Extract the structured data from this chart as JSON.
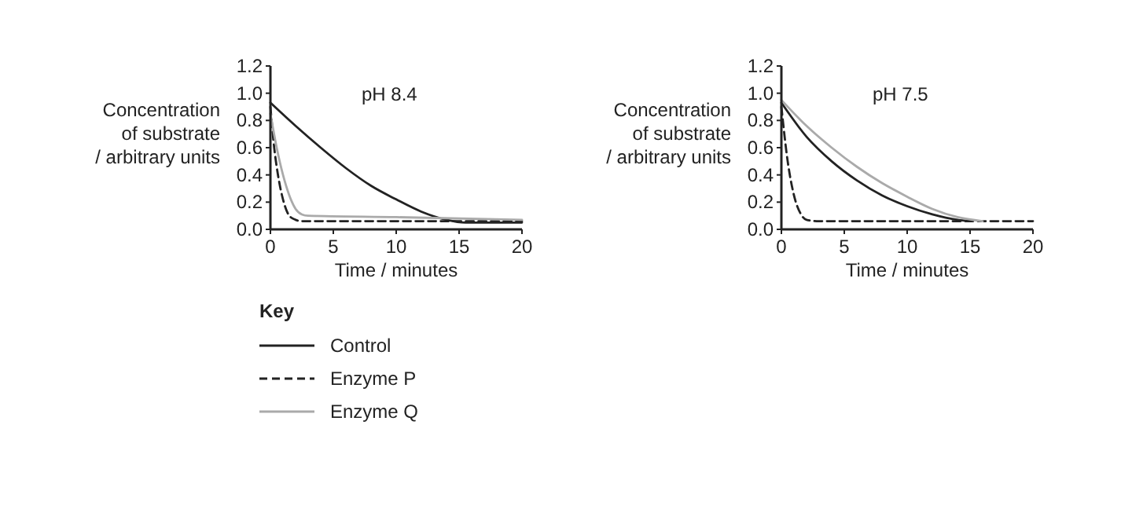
{
  "chart_data": [
    {
      "type": "line",
      "title": "pH 8.4",
      "xlabel": "Time / minutes",
      "ylabel": "Concentration\nof substrate\n/ arbitrary units",
      "legend_title": "Key",
      "legend": "bottom",
      "grid": false,
      "marker": "none",
      "xlim": [
        0,
        20
      ],
      "ylim": [
        0,
        1.2
      ],
      "xticks": [
        0,
        5,
        10,
        15,
        20
      ],
      "yticks": [
        {
          "value": 0,
          "label": "0.0"
        },
        {
          "value": 0.2,
          "label": "0.2"
        },
        {
          "value": 0.4,
          "label": "0.4"
        },
        {
          "value": 0.6,
          "label": "0.6"
        },
        {
          "value": 0.8,
          "label": "0.8"
        },
        {
          "value": 1,
          "label": "1.0"
        },
        {
          "value": 1.2,
          "label": "1.2"
        }
      ],
      "series": [
        {
          "name": "Control",
          "color": "#222222",
          "line_style": "solid",
          "x": [
            0,
            2,
            4,
            6,
            8,
            10,
            12,
            14,
            15.5,
            20
          ],
          "values": [
            0.93,
            0.76,
            0.6,
            0.45,
            0.32,
            0.22,
            0.13,
            0.07,
            0.05,
            0.05
          ]
        },
        {
          "name": "Enzyme P",
          "color": "#222222",
          "line_style": "dashed",
          "x": [
            0,
            0.3,
            0.6,
            1,
            1.5,
            2,
            2.5,
            20
          ],
          "values": [
            0.9,
            0.6,
            0.4,
            0.22,
            0.1,
            0.07,
            0.06,
            0.06
          ]
        },
        {
          "name": "Enzyme Q",
          "color": "#aaaaaa",
          "line_style": "solid",
          "x": [
            0,
            0.5,
            1,
            1.5,
            2,
            2.5,
            3,
            10,
            20
          ],
          "values": [
            0.85,
            0.6,
            0.4,
            0.25,
            0.15,
            0.11,
            0.1,
            0.09,
            0.07
          ]
        }
      ]
    },
    {
      "type": "line",
      "title": "pH 7.5",
      "xlabel": "Time / minutes",
      "ylabel": "Concentration\nof substrate\n/ arbitrary units",
      "legend": false,
      "grid": false,
      "marker": "none",
      "xlim": [
        0,
        20
      ],
      "ylim": [
        0,
        1.2
      ],
      "xticks": [
        0,
        5,
        10,
        15,
        20
      ],
      "yticks": [
        {
          "value": 0,
          "label": "0.0"
        },
        {
          "value": 0.2,
          "label": "0.2"
        },
        {
          "value": 0.4,
          "label": "0.4"
        },
        {
          "value": 0.6,
          "label": "0.6"
        },
        {
          "value": 0.8,
          "label": "0.8"
        },
        {
          "value": 1,
          "label": "1.0"
        },
        {
          "value": 1.2,
          "label": "1.2"
        }
      ],
      "series": [
        {
          "color": "#222222",
          "line_style": "solid",
          "x": [
            0,
            2,
            4,
            6,
            8,
            10,
            12,
            14,
            15
          ],
          "values": [
            0.93,
            0.68,
            0.5,
            0.36,
            0.25,
            0.17,
            0.11,
            0.07,
            0.06
          ]
        },
        {
          "color": "#222222",
          "line_style": "dashed",
          "x": [
            0,
            0.5,
            1,
            1.5,
            2,
            3,
            20
          ],
          "values": [
            0.9,
            0.5,
            0.25,
            0.12,
            0.07,
            0.06,
            0.06
          ]
        },
        {
          "color": "#aaaaaa",
          "line_style": "solid",
          "x": [
            0,
            2,
            4,
            6,
            8,
            10,
            12,
            14,
            16
          ],
          "values": [
            0.95,
            0.76,
            0.6,
            0.46,
            0.34,
            0.24,
            0.15,
            0.09,
            0.06
          ]
        }
      ]
    }
  ]
}
